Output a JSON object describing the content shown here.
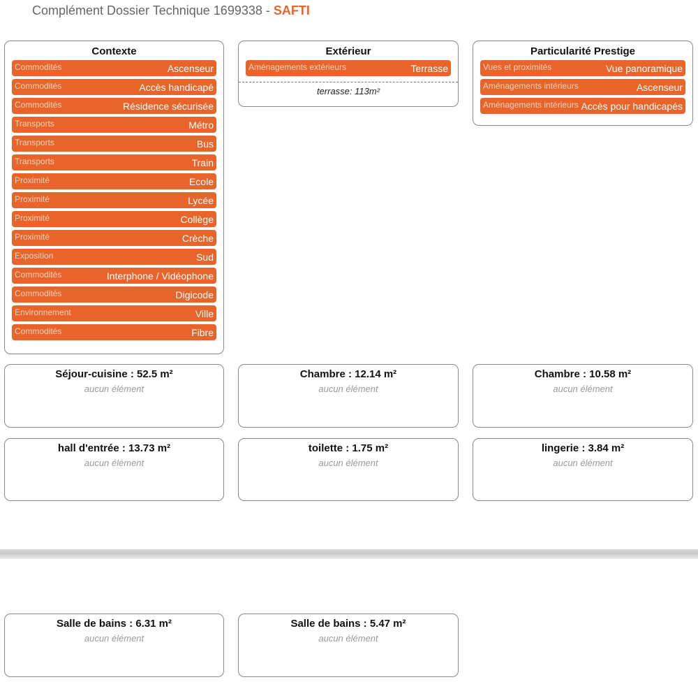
{
  "header": {
    "prefix": "Complément Dossier Technique 1699338 - ",
    "brand": "SAFTI"
  },
  "contexte": {
    "title": "Contexte",
    "items": [
      {
        "cat": "Commodités",
        "val": "Ascenseur"
      },
      {
        "cat": "Commodités",
        "val": "Accès handicapé"
      },
      {
        "cat": "Commodités",
        "val": "Résidence sécurisée"
      },
      {
        "cat": "Transports",
        "val": "Métro"
      },
      {
        "cat": "Transports",
        "val": "Bus"
      },
      {
        "cat": "Transports",
        "val": "Train"
      },
      {
        "cat": "Proximité",
        "val": "Ecole"
      },
      {
        "cat": "Proximité",
        "val": "Lycée"
      },
      {
        "cat": "Proximité",
        "val": "Collège"
      },
      {
        "cat": "Proximité",
        "val": "Crèche"
      },
      {
        "cat": "Exposition",
        "val": "Sud"
      },
      {
        "cat": "Commodités",
        "val": "Interphone / Vidéophone"
      },
      {
        "cat": "Commodités",
        "val": "Digicode"
      },
      {
        "cat": "Environnement",
        "val": "Ville"
      },
      {
        "cat": "Commodités",
        "val": "Fibre"
      }
    ]
  },
  "exterieur": {
    "title": "Extérieur",
    "items": [
      {
        "cat": "Aménagements extérieurs",
        "val": "Terrasse"
      }
    ],
    "note": "terrasse: 113m²"
  },
  "prestige": {
    "title": "Particularité Prestige",
    "items": [
      {
        "cat": "Vues et proximités",
        "val": "Vue panoramique"
      },
      {
        "cat": "Aménagements intérieurs",
        "val": "Ascenseur"
      },
      {
        "cat": "Aménagements intérieurs",
        "val": "Accès pour handicapés"
      }
    ]
  },
  "rooms": [
    {
      "title": "Séjour-cuisine : 52.5 m²",
      "empty": "aucun élément"
    },
    {
      "title": "Chambre : 12.14 m²",
      "empty": "aucun élément"
    },
    {
      "title": "Chambre : 10.58 m²",
      "empty": "aucun élément"
    },
    {
      "title": "hall d'entrée : 13.73 m²",
      "empty": "aucun élément"
    },
    {
      "title": "toilette : 1.75 m²",
      "empty": "aucun élément"
    },
    {
      "title": "lingerie : 3.84 m²",
      "empty": "aucun élément"
    },
    {
      "title": "Salle de bains : 6.31 m²",
      "empty": "aucun élément"
    },
    {
      "title": "Salle de bains : 5.47 m²",
      "empty": "aucun élément"
    }
  ]
}
